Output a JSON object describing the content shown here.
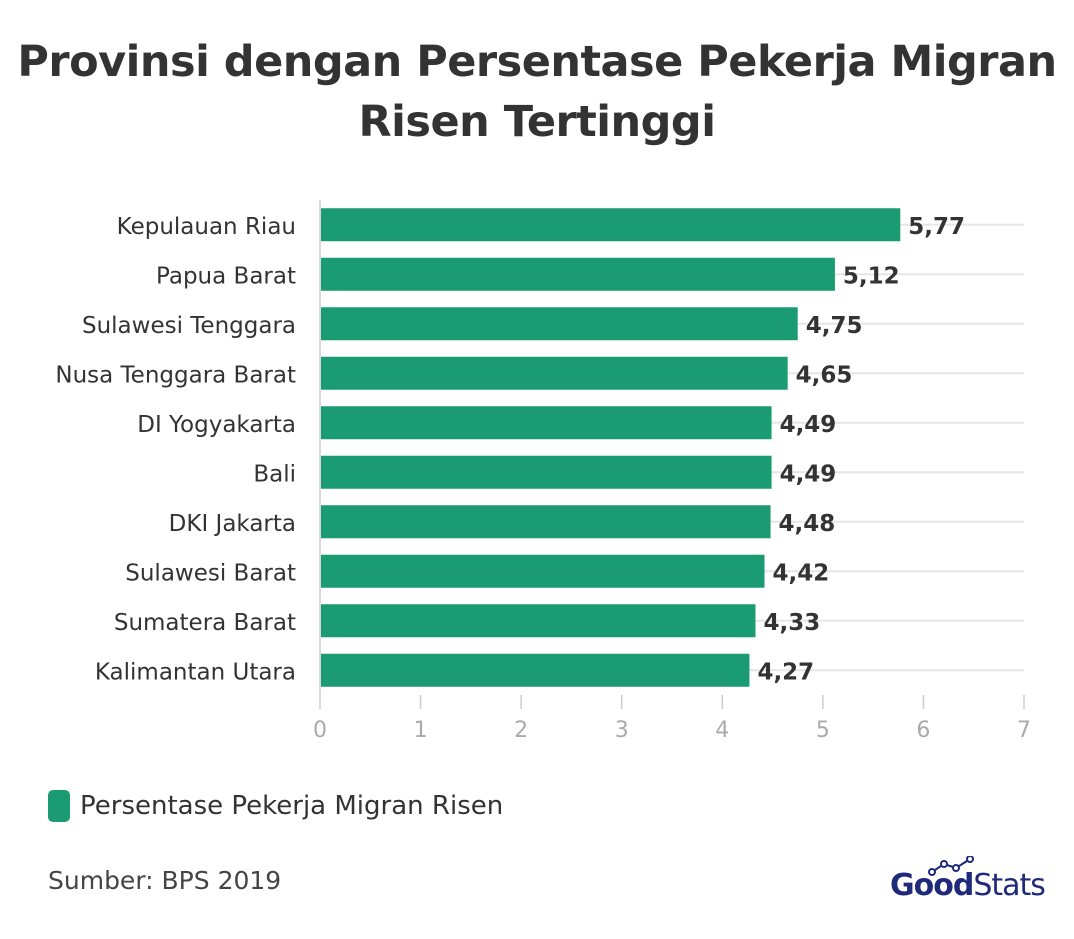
{
  "header": {
    "title_line1": "Provinsi dengan Persentase Pekerja Migran",
    "title_line2": "Risen Tertinggi"
  },
  "legend": {
    "label": "Persentase Pekerja Migran Risen"
  },
  "source": "Sumber: BPS 2019",
  "logo": {
    "part1": "Good",
    "part2": "Stats",
    "color": "#1f2a7a"
  },
  "chart_data": {
    "type": "bar",
    "orientation": "horizontal",
    "title": "Provinsi dengan Persentase Pekerja Migran Risen Tertinggi",
    "categories": [
      "Kepulauan Riau",
      "Papua Barat",
      "Sulawesi Tenggara",
      "Nusa Tenggara Barat",
      "DI Yogyakarta",
      "Bali",
      "DKI Jakarta",
      "Sulawesi Barat",
      "Sumatera Barat",
      "Kalimantan Utara"
    ],
    "series": [
      {
        "name": "Persentase Pekerja Migran Risen",
        "values": [
          5.77,
          5.12,
          4.75,
          4.65,
          4.49,
          4.49,
          4.48,
          4.42,
          4.33,
          4.27
        ],
        "labels": [
          "5,77",
          "5,12",
          "4,75",
          "4,65",
          "4,49",
          "4,49",
          "4,48",
          "4,42",
          "4,33",
          "4,27"
        ],
        "color": "#1a9b72"
      }
    ],
    "xlim": [
      0,
      7
    ],
    "xticks": [
      "0",
      "1",
      "2",
      "3",
      "4",
      "5",
      "6",
      "7"
    ],
    "grid": true,
    "legend_position": "bottom-left",
    "colors": {
      "bar": "#1a9b72",
      "grid": "#e6e6e6",
      "tick": "#aaaaaa",
      "label": "#333333"
    }
  }
}
